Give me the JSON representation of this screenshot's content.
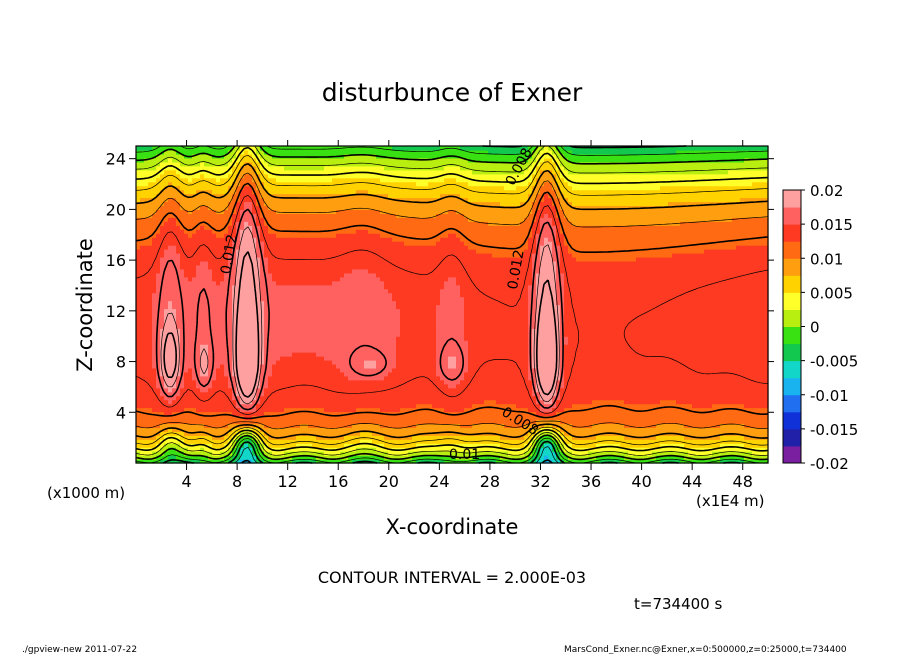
{
  "chart_data": {
    "type": "heatmap",
    "title": "disturbunce of Exner",
    "xlabel": "X-coordinate",
    "ylabel": "Z-coordinate",
    "x_unit_note": "(x1E4 m)",
    "y_unit_note": "(x1000 m)",
    "xlim": [
      0,
      50
    ],
    "ylim": [
      0,
      25
    ],
    "x_ticks": [
      4,
      8,
      12,
      16,
      20,
      24,
      28,
      32,
      36,
      40,
      44,
      48
    ],
    "y_ticks": [
      4,
      8,
      12,
      16,
      20,
      24
    ],
    "colorbar": {
      "ticks": [
        "0.02",
        "0.015",
        "0.01",
        "0.005",
        "0",
        "-0.005",
        "-0.01",
        "-0.015",
        "-0.02"
      ],
      "range": [
        -0.02,
        0.02
      ],
      "colors": [
        "#7a1fa0",
        "#2020a8",
        "#1030d8",
        "#1f6ff0",
        "#19b4ef",
        "#12d6c8",
        "#12c84e",
        "#39e012",
        "#b8ee10",
        "#ffff2a",
        "#ffd200",
        "#ff9f10",
        "#ff6a12",
        "#ff3a22",
        "#ff6060",
        "#ffa0a0"
      ]
    },
    "contour_labels": [
      {
        "text": "0.008",
        "x": 30.6,
        "z": 23.2,
        "angle": -62
      },
      {
        "text": "0.012",
        "x": 7.7,
        "z": 16.4,
        "angle": -80
      },
      {
        "text": "0.012",
        "x": 30.4,
        "z": 15.2,
        "angle": -80
      },
      {
        "text": "0.008",
        "x": 30.2,
        "z": 3.0,
        "angle": 32
      },
      {
        "text": "0.01",
        "x": 26.0,
        "z": 0.3,
        "angle": 0
      }
    ],
    "field": {
      "background_value": 0.0148,
      "surface_depression": -0.018,
      "peaks": [
        {
          "x": 2.7,
          "z": 8.2,
          "amp": 0.0055,
          "sx": 0.7,
          "sz": 2.5
        },
        {
          "x": 5.4,
          "z": 7.8,
          "amp": 0.003,
          "sx": 0.6,
          "sz": 1.8
        },
        {
          "x": 8.8,
          "z": 8.3,
          "amp": 0.0065,
          "sx": 0.75,
          "sz": 3.4
        },
        {
          "x": 18.5,
          "z": 7.8,
          "amp": 0.0025,
          "sx": 1.4,
          "sz": 1.0
        },
        {
          "x": 25.0,
          "z": 7.8,
          "amp": 0.0025,
          "sx": 1.0,
          "sz": 1.4
        },
        {
          "x": 32.5,
          "z": 8.3,
          "amp": 0.0065,
          "sx": 0.75,
          "sz": 3.4
        }
      ],
      "ridges": [
        {
          "x": 8.8,
          "amp": 0.0065,
          "sx": 1.1
        },
        {
          "x": 32.5,
          "amp": 0.0065,
          "sx": 1.1
        },
        {
          "x": 2.7,
          "amp": 0.0025,
          "sx": 1.0
        },
        {
          "x": 5.3,
          "amp": 0.0012,
          "sx": 0.8
        },
        {
          "x": 25.0,
          "amp": 0.0012,
          "sx": 1.2
        },
        {
          "x": 18.0,
          "amp": 0.0008,
          "sx": 2.0
        }
      ]
    }
  },
  "texts": {
    "contour_interval": "CONTOUR INTERVAL = 2.000E-03",
    "time": "t=734400 s",
    "footer_left": "./gpview-new   2011-07-22",
    "footer_right": "MarsCond_Exner.nc@Exner,x=0:500000,z=0:25000,t=734400"
  }
}
